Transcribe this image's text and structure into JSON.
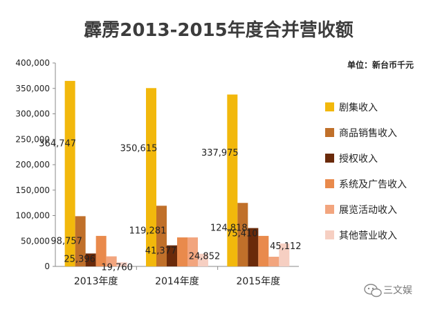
{
  "chart_data": {
    "type": "bar",
    "title": "霹雳2013-2015年度合并营收额",
    "unit_label": "单位：新台币千元",
    "xlabel": "",
    "ylabel": "",
    "categories": [
      "2013年度",
      "2014年度",
      "2015年度"
    ],
    "ylim": [
      0,
      400000
    ],
    "yticks": [
      0,
      50000,
      100000,
      150000,
      200000,
      250000,
      300000,
      350000,
      400000
    ],
    "ytick_labels": [
      "0",
      "50,000",
      "100,000",
      "150,000",
      "200,000",
      "250,000",
      "300,000",
      "350,000",
      "400,000"
    ],
    "grid": false,
    "legend_position": "right",
    "series": [
      {
        "name": "剧集收入",
        "color": "#F2B80C",
        "values": [
          364747,
          350615,
          337975
        ],
        "labels": [
          "364,747",
          "350,615",
          "337,975"
        ]
      },
      {
        "name": "商品销售收入",
        "color": "#C0702A",
        "values": [
          98757,
          119281,
          124818
        ],
        "labels": [
          "98,757",
          "119,281",
          "124,818"
        ]
      },
      {
        "name": "授权收入",
        "color": "#6A2A0A",
        "values": [
          25396,
          41377,
          75410
        ],
        "labels": [
          "25,396",
          "41,377",
          "75,410"
        ]
      },
      {
        "name": "系统及广告收入",
        "color": "#E98A4C",
        "values": [
          60000,
          57000,
          60000
        ],
        "labels": [
          "",
          "",
          ""
        ]
      },
      {
        "name": "展览活动收入",
        "color": "#F2A57E",
        "values": [
          19760,
          57000,
          19000
        ],
        "labels": [
          "19,760",
          "",
          ""
        ]
      },
      {
        "name": "其他营业收入",
        "color": "#F6CFC2",
        "values": [
          8000,
          24852,
          45112
        ],
        "labels": [
          "",
          "24,852",
          "45,112"
        ]
      }
    ]
  },
  "watermark": {
    "text": "三文娱",
    "icon": "wechat-icon"
  }
}
